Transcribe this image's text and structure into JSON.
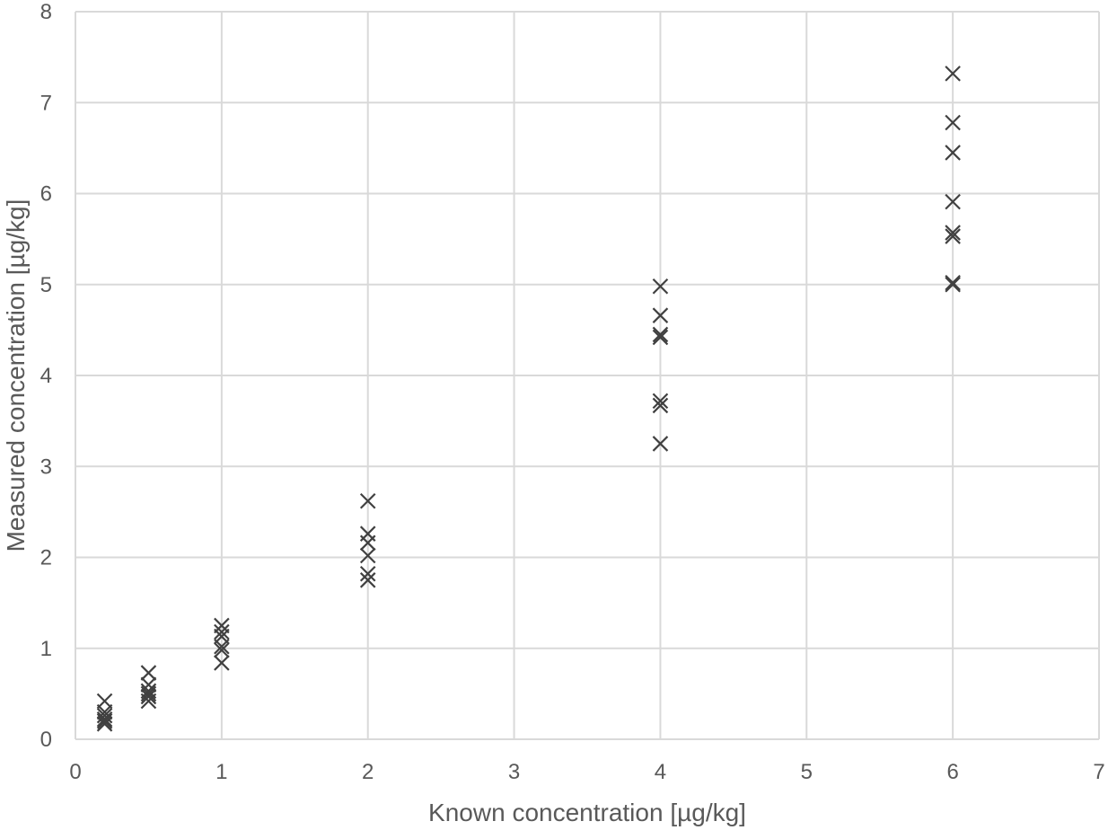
{
  "chart_data": {
    "type": "scatter",
    "title": "",
    "xlabel": "Known concentration [µg/kg]",
    "ylabel": "Measured concentration [µg/kg]",
    "xlim": [
      0,
      7
    ],
    "ylim": [
      0,
      8
    ],
    "xticks": [
      "0",
      "1",
      "2",
      "3",
      "4",
      "5",
      "6",
      "7"
    ],
    "yticks": [
      "0",
      "1",
      "2",
      "3",
      "4",
      "5",
      "6",
      "7",
      "8"
    ],
    "grid": true,
    "legend": "none",
    "marker": "x",
    "marker_color": "#404040",
    "x_axis_mapping": [
      {
        "label": "0",
        "value": 0
      },
      {
        "label": "1",
        "value": 1
      },
      {
        "label": "2",
        "value": 2
      },
      {
        "label": "3",
        "value": 3
      },
      {
        "label": "4",
        "value": 4
      },
      {
        "label": "5",
        "value": 5
      },
      {
        "label": "6",
        "value": 6
      },
      {
        "label": "7",
        "value": 7
      }
    ],
    "points": [
      {
        "x": 0.2,
        "y": 0.42
      },
      {
        "x": 0.2,
        "y": 0.3
      },
      {
        "x": 0.2,
        "y": 0.26
      },
      {
        "x": 0.2,
        "y": 0.22
      },
      {
        "x": 0.2,
        "y": 0.2
      },
      {
        "x": 0.2,
        "y": 0.17
      },
      {
        "x": 0.5,
        "y": 0.73
      },
      {
        "x": 0.5,
        "y": 0.6
      },
      {
        "x": 0.5,
        "y": 0.53
      },
      {
        "x": 0.5,
        "y": 0.5
      },
      {
        "x": 0.5,
        "y": 0.47
      },
      {
        "x": 0.5,
        "y": 0.42
      },
      {
        "x": 1,
        "y": 1.25
      },
      {
        "x": 1,
        "y": 1.18
      },
      {
        "x": 1,
        "y": 1.13
      },
      {
        "x": 1,
        "y": 1.02
      },
      {
        "x": 1,
        "y": 0.98
      },
      {
        "x": 1,
        "y": 0.84
      },
      {
        "x": 2,
        "y": 2.62
      },
      {
        "x": 2,
        "y": 2.26
      },
      {
        "x": 2,
        "y": 2.16
      },
      {
        "x": 2,
        "y": 2.02
      },
      {
        "x": 2,
        "y": 1.82
      },
      {
        "x": 2,
        "y": 1.75
      },
      {
        "x": 4,
        "y": 4.98
      },
      {
        "x": 4,
        "y": 4.66
      },
      {
        "x": 4,
        "y": 4.45
      },
      {
        "x": 4,
        "y": 4.42
      },
      {
        "x": 4,
        "y": 3.72
      },
      {
        "x": 4,
        "y": 3.67
      },
      {
        "x": 4,
        "y": 3.25
      },
      {
        "x": 6,
        "y": 7.32
      },
      {
        "x": 6,
        "y": 6.78
      },
      {
        "x": 6,
        "y": 6.45
      },
      {
        "x": 6,
        "y": 5.91
      },
      {
        "x": 6,
        "y": 5.57
      },
      {
        "x": 6,
        "y": 5.53
      },
      {
        "x": 6,
        "y": 5.02
      },
      {
        "x": 6,
        "y": 5.0
      }
    ]
  }
}
